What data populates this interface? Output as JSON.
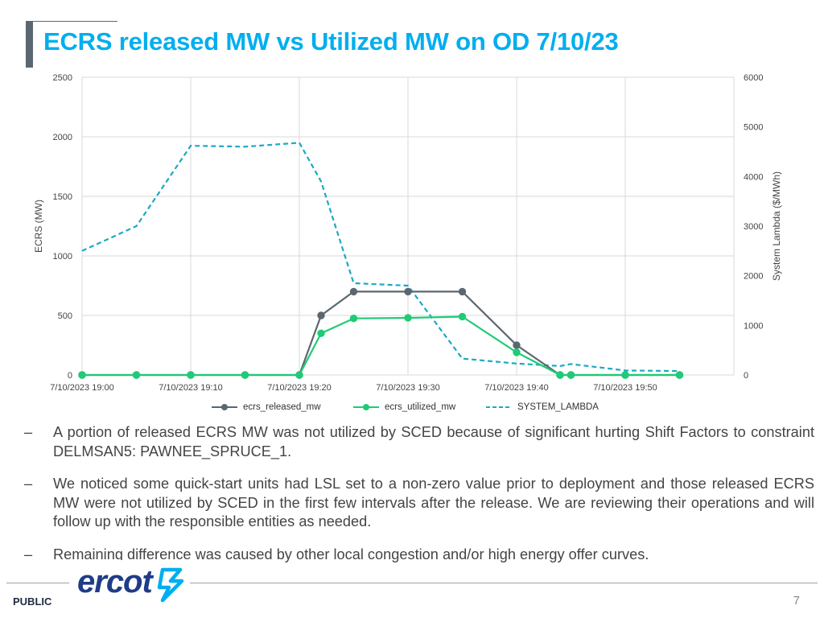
{
  "title": "ECRS released MW vs Utilized MW on OD 7/10/23",
  "chart_data": {
    "type": "line",
    "x": [
      "7/10/2023 19:00",
      "7/10/2023 19:05",
      "7/10/2023 19:10",
      "7/10/2023 19:15",
      "7/10/2023 19:20",
      "7/10/2023 19:22",
      "7/10/2023 19:25",
      "7/10/2023 19:30",
      "7/10/2023 19:35",
      "7/10/2023 19:40",
      "7/10/2023 19:44",
      "7/10/2023 19:45",
      "7/10/2023 19:50",
      "7/10/2023 19:55"
    ],
    "x_tick_labels": [
      "7/10/2023 19:00",
      "7/10/2023 19:10",
      "7/10/2023 19:20",
      "7/10/2023 19:30",
      "7/10/2023 19:40",
      "7/10/2023 19:50"
    ],
    "ylabel": "ECRS (MW)",
    "y2label": "System Lambda ($/MWh)",
    "ylim": [
      0,
      2500
    ],
    "y_ticks": [
      "0",
      "500",
      "1000",
      "1500",
      "2000",
      "2500"
    ],
    "y2lim": [
      0,
      6000
    ],
    "y2_ticks": [
      "0",
      "1000",
      "2000",
      "3000",
      "4000",
      "5000",
      "6000"
    ],
    "grid": true,
    "legend_position": "bottom",
    "series": [
      {
        "name": "ecrs_released_mw",
        "axis": "left",
        "color": "#5b6770",
        "marker": true,
        "dashed": false,
        "points": [
          [
            "7/10/2023 19:00",
            0
          ],
          [
            "7/10/2023 19:05",
            0
          ],
          [
            "7/10/2023 19:10",
            0
          ],
          [
            "7/10/2023 19:15",
            0
          ],
          [
            "7/10/2023 19:20",
            0
          ],
          [
            "7/10/2023 19:22",
            500
          ],
          [
            "7/10/2023 19:25",
            700
          ],
          [
            "7/10/2023 19:30",
            700
          ],
          [
            "7/10/2023 19:35",
            700
          ],
          [
            "7/10/2023 19:40",
            250
          ],
          [
            "7/10/2023 19:44",
            0
          ],
          [
            "7/10/2023 19:45",
            0
          ],
          [
            "7/10/2023 19:50",
            0
          ],
          [
            "7/10/2023 19:55",
            0
          ]
        ]
      },
      {
        "name": "ecrs_utilized_mw",
        "axis": "left",
        "color": "#1fcb76",
        "marker": true,
        "dashed": false,
        "points": [
          [
            "7/10/2023 19:00",
            0
          ],
          [
            "7/10/2023 19:05",
            0
          ],
          [
            "7/10/2023 19:10",
            0
          ],
          [
            "7/10/2023 19:15",
            0
          ],
          [
            "7/10/2023 19:20",
            0
          ],
          [
            "7/10/2023 19:22",
            350
          ],
          [
            "7/10/2023 19:25",
            475
          ],
          [
            "7/10/2023 19:30",
            480
          ],
          [
            "7/10/2023 19:35",
            490
          ],
          [
            "7/10/2023 19:40",
            190
          ],
          [
            "7/10/2023 19:44",
            0
          ],
          [
            "7/10/2023 19:45",
            0
          ],
          [
            "7/10/2023 19:50",
            0
          ],
          [
            "7/10/2023 19:55",
            0
          ]
        ]
      },
      {
        "name": "SYSTEM_LAMBDA",
        "axis": "right",
        "color": "#1ba9c4",
        "marker": false,
        "dashed": true,
        "points": [
          [
            "7/10/2023 19:00",
            2500
          ],
          [
            "7/10/2023 19:05",
            3000
          ],
          [
            "7/10/2023 19:10",
            4620
          ],
          [
            "7/10/2023 19:15",
            4600
          ],
          [
            "7/10/2023 19:20",
            4680
          ],
          [
            "7/10/2023 19:22",
            3900
          ],
          [
            "7/10/2023 19:25",
            1850
          ],
          [
            "7/10/2023 19:30",
            1800
          ],
          [
            "7/10/2023 19:35",
            330
          ],
          [
            "7/10/2023 19:40",
            230
          ],
          [
            "7/10/2023 19:44",
            180
          ],
          [
            "7/10/2023 19:45",
            220
          ],
          [
            "7/10/2023 19:50",
            90
          ],
          [
            "7/10/2023 19:55",
            80
          ]
        ]
      }
    ]
  },
  "bullets": [
    {
      "dash": "–",
      "text": "A portion of released ECRS MW was not utilized by SCED because of significant hurting Shift Factors to constraint DELMSAN5: PAWNEE_SPRUCE_1."
    },
    {
      "dash": "–",
      "text": "We noticed some quick-start units had LSL set to a non-zero value prior to deployment and those released ECRS MW were not utilized by SCED in the first few intervals after the release. We are reviewing their operations and will follow up with the responsible entities as needed."
    },
    {
      "dash": "–",
      "text": "Remaining difference was caused by other local congestion and/or high energy offer curves."
    }
  ],
  "footer": {
    "logo_text": "ercot",
    "classification": "PUBLIC",
    "page_number": "7",
    "logo_color": "#1f3c88",
    "accent_color": "#00aeef"
  }
}
